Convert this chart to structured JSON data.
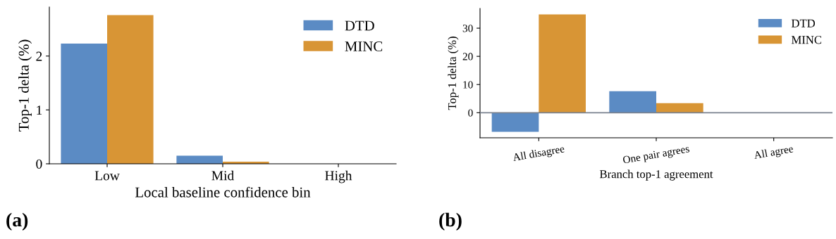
{
  "chart_data": [
    {
      "type": "bar",
      "categories": [
        "Low",
        "Mid",
        "High"
      ],
      "xlabel": "Local baseline confidence bin",
      "ylabel": "Top-1 delta (%)",
      "series": [
        {
          "name": "DTD",
          "color": "#5b8bc4",
          "values": [
            2.23,
            0.15,
            0
          ]
        },
        {
          "name": "MINC",
          "color": "#d89535",
          "values": [
            2.76,
            0.04,
            0
          ]
        }
      ],
      "ylim": [
        0,
        2.91
      ],
      "yticks": [
        0,
        1,
        2
      ],
      "legend": "top right",
      "grid": false,
      "annotations": [
        "(a)"
      ]
    },
    {
      "type": "bar",
      "categories": [
        "All disagree",
        "One pair agrees",
        "All agree"
      ],
      "xlabel": "Branch top-1 agreement",
      "ylabel": "Top-1 delta (%)",
      "series": [
        {
          "name": "DTD",
          "color": "#5b8bc4",
          "values": [
            -6.8,
            7.6,
            0
          ]
        },
        {
          "name": "MINC",
          "color": "#d89535",
          "values": [
            34.9,
            3.4,
            0
          ]
        }
      ],
      "ylim": [
        -8.9,
        37
      ],
      "yticks": [
        0,
        10,
        20,
        30
      ],
      "legend": "top right",
      "grid": false,
      "ref_lines": [
        {
          "axis": "y",
          "value": 0,
          "color": "#7a8290"
        }
      ],
      "annotations": [
        "(b)"
      ]
    }
  ]
}
